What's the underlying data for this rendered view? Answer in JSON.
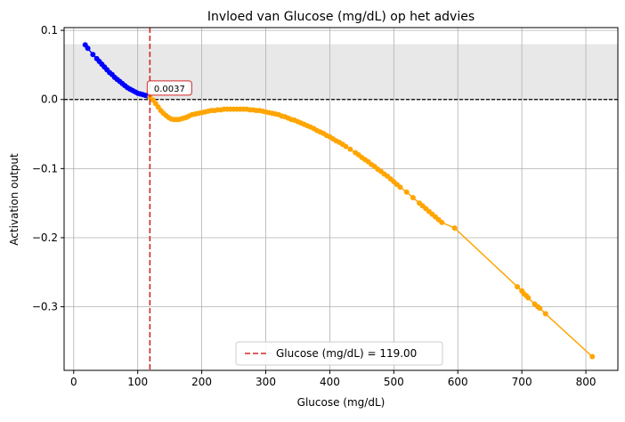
{
  "chart_data": {
    "type": "line",
    "title": "Invloed van Glucose (mg/dL) op het advies",
    "xlabel": "Glucose (mg/dL)",
    "ylabel": "Activation output",
    "xlim": [
      -15,
      850
    ],
    "ylim": [
      -0.392,
      0.104
    ],
    "x_ticks": [
      0,
      100,
      200,
      300,
      400,
      500,
      600,
      700,
      800
    ],
    "y_ticks": [
      0.1,
      0.0,
      -0.1,
      -0.2,
      -0.3
    ],
    "y_tick_labels": [
      "0.1",
      "0.0",
      "−0.1",
      "−0.2",
      "−0.3"
    ],
    "grid": true,
    "shaded_band": {
      "y_from": 0.0,
      "y_to": 0.08,
      "color": "#e8e8e8"
    },
    "zero_line": {
      "y": 0.0,
      "style": "dashed",
      "color": "#000000"
    },
    "threshold": {
      "x": 119,
      "color": "#d62728",
      "style": "dashed"
    },
    "annotation": {
      "x": 119,
      "y": 0.0037,
      "text": "0.0037",
      "color": "#d62728"
    },
    "legend": {
      "label": "Glucose (mg/dL) = 119.00",
      "position": "lower-center"
    },
    "series": [
      {
        "color": "#0000ff",
        "x": [
          18,
          22,
          30,
          36,
          40,
          44,
          48,
          52,
          56,
          60,
          64,
          68,
          72,
          76,
          80,
          84,
          88,
          92,
          96,
          100,
          104,
          108,
          112,
          116
        ],
        "y": [
          0.079,
          0.074,
          0.065,
          0.059,
          0.055,
          0.051,
          0.047,
          0.043,
          0.039,
          0.036,
          0.032,
          0.029,
          0.026,
          0.023,
          0.02,
          0.017,
          0.015,
          0.013,
          0.011,
          0.009,
          0.008,
          0.007,
          0.006,
          0.005
        ]
      },
      {
        "color": "#ffa500",
        "x": [
          119,
          124,
          128,
          132,
          136,
          140,
          144,
          148,
          152,
          156,
          160,
          164,
          168,
          172,
          176,
          180,
          185,
          190,
          195,
          200,
          205,
          210,
          215,
          220,
          225,
          230,
          235,
          240,
          245,
          250,
          255,
          260,
          265,
          270,
          275,
          280,
          285,
          290,
          295,
          300,
          305,
          310,
          315,
          320,
          325,
          330,
          335,
          340,
          345,
          350,
          355,
          360,
          365,
          370,
          375,
          380,
          385,
          390,
          395,
          400,
          405,
          410,
          415,
          420,
          425,
          432,
          440,
          445,
          450,
          455,
          460,
          465,
          470,
          475,
          480,
          485,
          490,
          495,
          500,
          505,
          510,
          520,
          530,
          540,
          545,
          550,
          555,
          560,
          565,
          570,
          575,
          595,
          693,
          700,
          703,
          707,
          710,
          720,
          725,
          728,
          737,
          810
        ],
        "y": [
          0.0037,
          -0.001,
          -0.006,
          -0.011,
          -0.016,
          -0.02,
          -0.023,
          -0.026,
          -0.028,
          -0.029,
          -0.029,
          -0.029,
          -0.028,
          -0.027,
          -0.026,
          -0.024,
          -0.022,
          -0.021,
          -0.02,
          -0.019,
          -0.018,
          -0.017,
          -0.016,
          -0.016,
          -0.015,
          -0.015,
          -0.014,
          -0.014,
          -0.014,
          -0.014,
          -0.014,
          -0.014,
          -0.014,
          -0.014,
          -0.015,
          -0.015,
          -0.016,
          -0.016,
          -0.017,
          -0.018,
          -0.019,
          -0.02,
          -0.021,
          -0.022,
          -0.024,
          -0.025,
          -0.027,
          -0.029,
          -0.03,
          -0.032,
          -0.034,
          -0.036,
          -0.038,
          -0.04,
          -0.042,
          -0.045,
          -0.047,
          -0.049,
          -0.052,
          -0.054,
          -0.057,
          -0.06,
          -0.062,
          -0.065,
          -0.068,
          -0.072,
          -0.077,
          -0.08,
          -0.084,
          -0.087,
          -0.09,
          -0.094,
          -0.097,
          -0.101,
          -0.104,
          -0.108,
          -0.111,
          -0.115,
          -0.119,
          -0.123,
          -0.127,
          -0.134,
          -0.142,
          -0.15,
          -0.154,
          -0.158,
          -0.162,
          -0.166,
          -0.17,
          -0.174,
          -0.178,
          -0.186,
          -0.271,
          -0.277,
          -0.281,
          -0.284,
          -0.287,
          -0.296,
          -0.3,
          -0.302,
          -0.31,
          -0.372
        ]
      }
    ]
  }
}
